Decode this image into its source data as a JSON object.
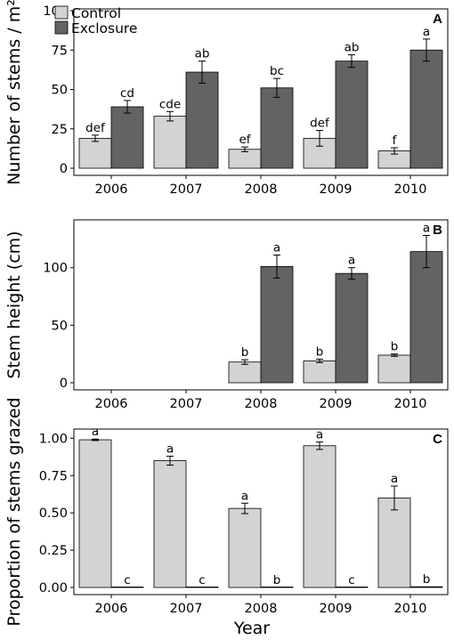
{
  "colors": {
    "control": "#d3d3d3",
    "exclosure": "#636363"
  },
  "legend": {
    "control": "Control",
    "exclosure": "Exclosure",
    "placement": "top-left"
  },
  "xlabel": "Year",
  "chart_data": [
    {
      "type": "bar",
      "panel": "A",
      "ylabel": "Number of stems / m²",
      "categories": [
        "2006",
        "2007",
        "2008",
        "2009",
        "2010"
      ],
      "ylim": [
        0,
        100
      ],
      "yticks": [
        0,
        25,
        50,
        75,
        100
      ],
      "series": [
        {
          "name": "Control",
          "values": [
            19,
            33,
            12,
            19,
            11
          ],
          "errors": [
            2,
            3,
            1.5,
            5,
            2
          ],
          "labels": [
            "def",
            "cde",
            "ef",
            "def",
            "f"
          ]
        },
        {
          "name": "Exclosure",
          "values": [
            39,
            61,
            51,
            68,
            75
          ],
          "errors": [
            4,
            7,
            6,
            4,
            7
          ],
          "labels": [
            "cd",
            "ab",
            "bc",
            "ab",
            "a"
          ]
        }
      ]
    },
    {
      "type": "bar",
      "panel": "B",
      "ylabel": "Stem height (cm)",
      "categories": [
        "2006",
        "2007",
        "2008",
        "2009",
        "2010"
      ],
      "ylim": [
        0,
        140
      ],
      "yticks": [
        0,
        50,
        100
      ],
      "series": [
        {
          "name": "Control",
          "values": [
            null,
            null,
            18,
            19,
            24
          ],
          "errors": [
            null,
            null,
            2,
            1.5,
            1
          ],
          "labels": [
            "",
            "",
            "b",
            "b",
            "b"
          ]
        },
        {
          "name": "Exclosure",
          "values": [
            null,
            null,
            101,
            95,
            114
          ],
          "errors": [
            null,
            null,
            10,
            5,
            14
          ],
          "labels": [
            "",
            "",
            "a",
            "a",
            "a"
          ]
        }
      ]
    },
    {
      "type": "bar",
      "panel": "C",
      "ylabel": "Proportion of stems grazed",
      "categories": [
        "2006",
        "2007",
        "2008",
        "2009",
        "2010"
      ],
      "ylim": [
        0,
        1.05
      ],
      "yticks": [
        0,
        0.25,
        0.5,
        0.75,
        1.0
      ],
      "yticklabels": [
        "0.00",
        "0.25",
        "0.50",
        "0.75",
        "1.00"
      ],
      "series": [
        {
          "name": "Control",
          "values": [
            0.99,
            0.85,
            0.53,
            0.95,
            0.6
          ],
          "errors": [
            0.005,
            0.03,
            0.035,
            0.025,
            0.08
          ],
          "labels": [
            "a",
            "a",
            "a",
            "a",
            "a"
          ]
        },
        {
          "name": "Exclosure",
          "values": [
            0,
            0,
            0,
            0,
            0.005
          ],
          "errors": [
            null,
            null,
            null,
            null,
            null
          ],
          "labels": [
            "c",
            "c",
            "b",
            "c",
            "b"
          ]
        }
      ]
    }
  ]
}
